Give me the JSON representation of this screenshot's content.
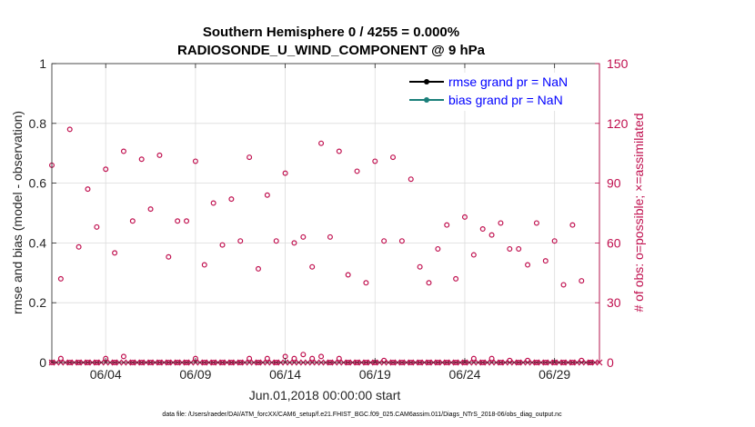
{
  "chart_data": {
    "type": "scatter",
    "title_line1": "Southern Hemisphere 0 / 4255 = 0.000%",
    "title_line2": "RADIOSONDE_U_WIND_COMPONENT @ 9 hPa",
    "xlabel": "Jun.01,2018 00:00:00 start",
    "ylabel_left": "rmse and bias (model - observation)",
    "ylabel_right": "# of obs: o=possible; ×=assimilated",
    "ylim_left": [
      0,
      1
    ],
    "ylim_right": [
      0,
      150
    ],
    "xlim": [
      1.0,
      31.5
    ],
    "yticks_left": [
      "0",
      "0.2",
      "0.4",
      "0.6",
      "0.8",
      "1"
    ],
    "yticks_right": [
      "0",
      "30",
      "60",
      "90",
      "120",
      "150"
    ],
    "xticks": [
      {
        "day": 4,
        "label": "06/04"
      },
      {
        "day": 9,
        "label": "06/09"
      },
      {
        "day": 14,
        "label": "06/14"
      },
      {
        "day": 19,
        "label": "06/19"
      },
      {
        "day": 24,
        "label": "06/24"
      },
      {
        "day": 29,
        "label": "06/29"
      }
    ],
    "legend": [
      {
        "label": "rmse grand pr = NaN",
        "color": "#000000"
      },
      {
        "label": "bias grand pr = NaN",
        "color": "#1a7f7a"
      }
    ],
    "series": [
      {
        "name": "possible",
        "marker": "circle",
        "color": "#c0104f",
        "x": [
          1.0,
          1.5,
          2.0,
          2.5,
          3.0,
          3.5,
          4.0,
          4.5,
          5.0,
          5.5,
          6.0,
          6.5,
          7.0,
          7.5,
          8.0,
          8.5,
          9.0,
          9.5,
          10.0,
          10.5,
          11.0,
          11.5,
          12.0,
          12.5,
          13.0,
          13.5,
          14.0,
          14.5,
          15.0,
          15.5,
          16.0,
          16.5,
          17.0,
          17.5,
          18.0,
          18.5,
          19.0,
          19.5,
          20.0,
          20.5,
          21.0,
          21.5,
          22.0,
          22.5,
          23.0,
          23.5,
          24.0,
          24.5,
          25.0,
          25.5,
          26.0,
          26.5,
          27.0,
          27.5,
          28.0,
          28.5,
          29.0,
          29.5,
          30.0,
          30.5,
          31.0
        ],
        "values": [
          99,
          42,
          117,
          58,
          87,
          68,
          97,
          55,
          106,
          71,
          102,
          77,
          104,
          53,
          71,
          71,
          101,
          49,
          80,
          59,
          82,
          61,
          103,
          47,
          84,
          61,
          95,
          60,
          63,
          48,
          110,
          63,
          106,
          44,
          96,
          40,
          101,
          61,
          103,
          61,
          92,
          48,
          40,
          57,
          69,
          42,
          73,
          54,
          67,
          64,
          70,
          57,
          57,
          49,
          70,
          51,
          61,
          39,
          69,
          41,
          0
        ],
        "values_small": [
          0,
          2,
          0,
          0,
          0,
          0,
          2,
          0,
          3,
          0,
          0,
          0,
          0,
          0,
          0,
          0,
          2,
          0,
          0,
          0,
          0,
          0,
          2,
          0,
          2,
          0,
          3,
          2,
          4,
          2,
          3,
          0,
          2,
          0,
          0,
          0,
          0,
          1,
          0,
          0,
          0,
          0,
          0,
          0,
          0,
          0,
          0,
          2,
          0,
          2,
          0,
          1,
          0,
          1,
          0,
          0,
          0,
          0,
          0,
          1,
          0
        ]
      },
      {
        "name": "assimilated",
        "marker": "x",
        "color": "#c0104f",
        "count_each": 0
      }
    ]
  },
  "footnote": "data file: /Users/raeder/DAI/ATM_forcXX/CAM6_setup/f.e21.FHIST_BGC.f09_025.CAM6assim.011/Diags_NTrS_2018-06/obs_diag_output.nc"
}
